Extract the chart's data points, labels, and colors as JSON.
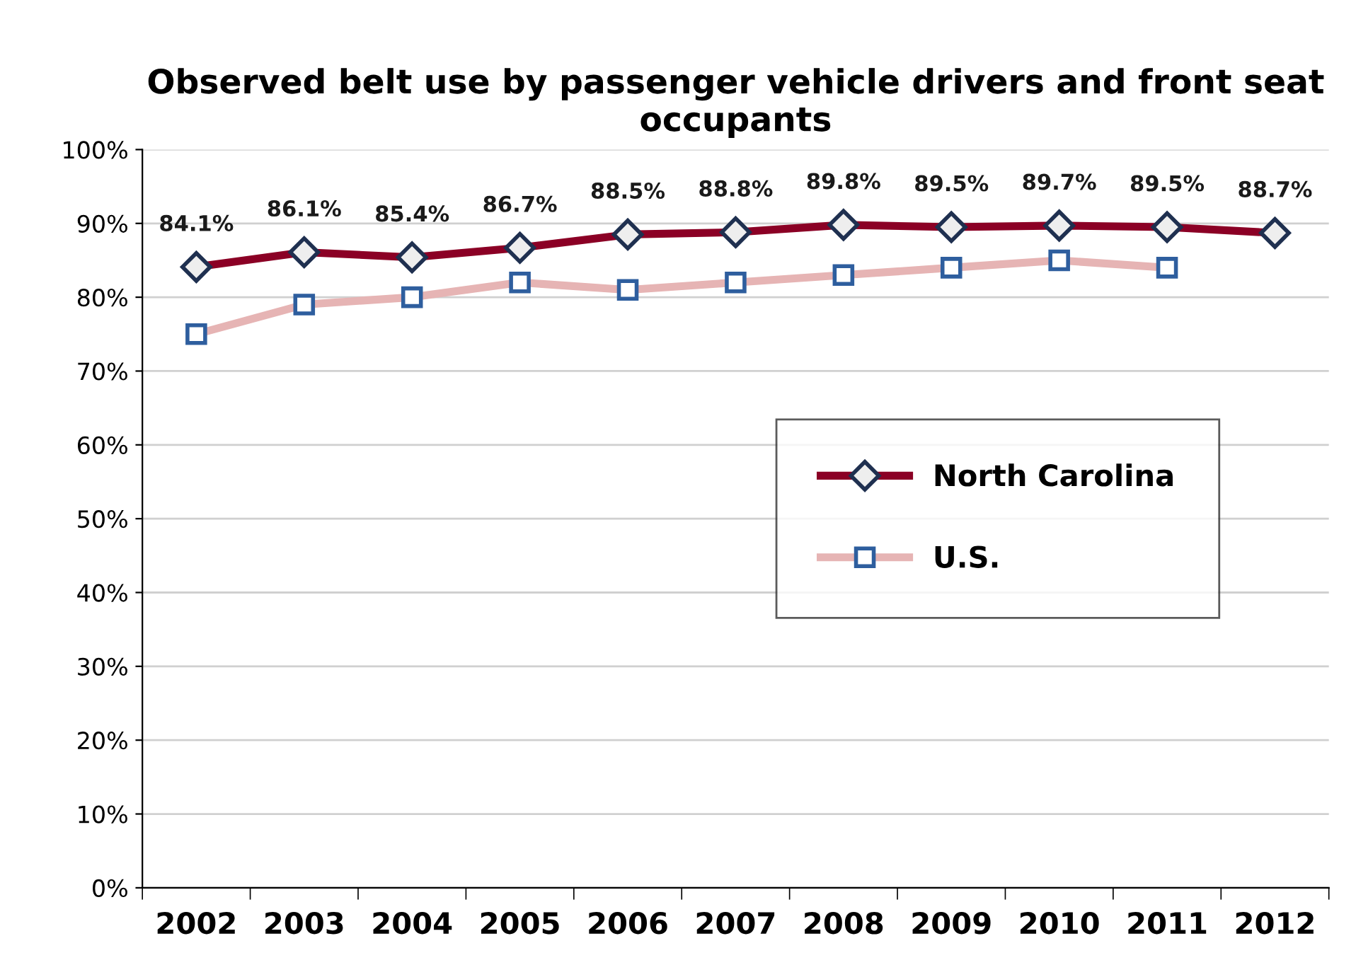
{
  "chart_data": {
    "type": "line",
    "title": "Observed belt use by passenger vehicle drivers and front seat occupants",
    "categories": [
      "2002",
      "2003",
      "2004",
      "2005",
      "2006",
      "2007",
      "2008",
      "2009",
      "2010",
      "2011",
      "2012"
    ],
    "series": [
      {
        "name": "North Carolina",
        "color": "#8b0025",
        "marker": "diamond",
        "values": [
          84.1,
          86.1,
          85.4,
          86.7,
          88.5,
          88.8,
          89.8,
          89.5,
          89.7,
          89.5,
          88.7
        ],
        "value_labels": [
          "84.1%",
          "86.1%",
          "85.4%",
          "86.7%",
          "88.5%",
          "88.8%",
          "89.8%",
          "89.5%",
          "89.7%",
          "89.5%",
          "88.7%"
        ]
      },
      {
        "name": "U.S.",
        "color": "#e6b4b4",
        "marker": "square",
        "values": [
          75,
          79,
          80,
          82,
          81,
          82,
          83,
          84,
          85,
          84,
          null
        ]
      }
    ],
    "ylim": [
      0,
      100
    ],
    "yticks": [
      {
        "value": 0,
        "label": "0%"
      },
      {
        "value": 10,
        "label": "10%"
      },
      {
        "value": 20,
        "label": "20%"
      },
      {
        "value": 30,
        "label": "30%"
      },
      {
        "value": 40,
        "label": "40%"
      },
      {
        "value": 50,
        "label": "50%"
      },
      {
        "value": 60,
        "label": "60%"
      },
      {
        "value": 70,
        "label": "70%"
      },
      {
        "value": 80,
        "label": "80%"
      },
      {
        "value": 90,
        "label": "90%"
      },
      {
        "value": 100,
        "label": "100%"
      }
    ],
    "grid": "y",
    "legend": "right"
  }
}
